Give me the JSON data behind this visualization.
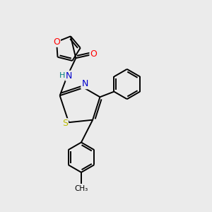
{
  "background_color": "#ebebeb",
  "bond_color": "#000000",
  "atom_colors": {
    "O": "#ff0000",
    "N": "#0000cc",
    "S": "#bbbb00",
    "C": "#000000",
    "H": "#008080"
  },
  "figsize": [
    3.0,
    3.0
  ],
  "dpi": 100
}
